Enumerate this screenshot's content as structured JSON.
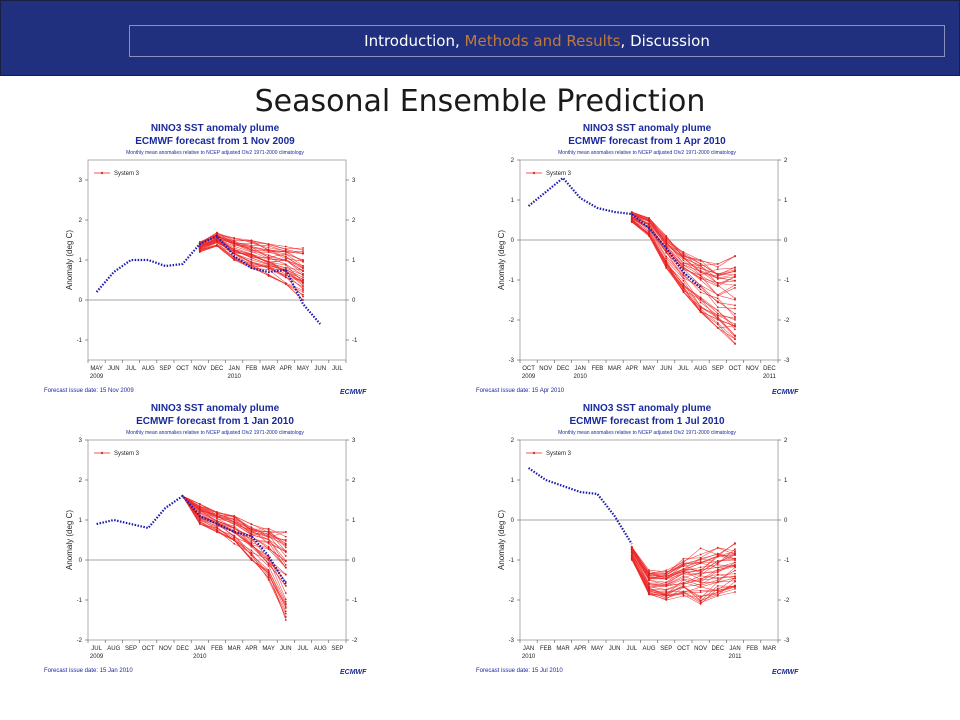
{
  "header": {
    "nav_parts": [
      "Introduction",
      ", ",
      "Methods and Results",
      ", Discussion"
    ],
    "accent_color": "#c07a3a",
    "bar_color": "#20307e"
  },
  "slide_title": "Seasonal Ensemble Prediction",
  "chart_data": [
    {
      "type": "line",
      "title": "NINO3 SST anomaly plume",
      "subtitle": "ECMWF forecast from 1 Nov 2009",
      "note": "Monthly mean anomalies relative to NCEP adjusted OIv2 1971-2000 climatology",
      "ylabel": "Anomaly (deg C)",
      "ylim": [
        -1.5,
        3.5
      ],
      "yticks": [
        -1,
        0,
        1,
        2,
        3
      ],
      "categories": [
        "MAY",
        "JUN",
        "JUL",
        "AUG",
        "SEP",
        "OCT",
        "NOV",
        "DEC",
        "JAN",
        "FEB",
        "MAR",
        "APR",
        "MAY",
        "JUN",
        "JUL"
      ],
      "year_labels": [
        {
          "label": "2009",
          "index": 0
        },
        {
          "label": "2010",
          "index": 8
        }
      ],
      "legend": "System 3",
      "footer": "Forecast issue date: 15 Nov 2009",
      "logo": "ECMWF",
      "observed": [
        0.2,
        0.7,
        1.0,
        1.0,
        0.85,
        0.9,
        1.4,
        1.6,
        1.1,
        0.8,
        0.7,
        0.75,
        -0.1,
        -0.6
      ],
      "forecast_start": 6,
      "forecast_end": 12,
      "ensemble_range": [
        [
          1.2,
          1.45
        ],
        [
          1.35,
          1.7
        ],
        [
          1.0,
          1.55
        ],
        [
          0.8,
          1.5
        ],
        [
          0.6,
          1.4
        ],
        [
          0.4,
          1.35
        ],
        [
          0.0,
          1.3
        ]
      ]
    },
    {
      "type": "line",
      "title": "NINO3 SST anomaly plume",
      "subtitle": "ECMWF forecast from 1 Apr 2010",
      "note": "Monthly mean anomalies relative to NCEP adjusted OIv2 1971-2000 climatology",
      "ylabel": "Anomaly (deg C)",
      "ylim": [
        -3,
        2
      ],
      "yticks": [
        -3,
        -2,
        -1,
        0,
        1,
        2
      ],
      "categories": [
        "OCT",
        "NOV",
        "DEC",
        "JAN",
        "FEB",
        "MAR",
        "APR",
        "MAY",
        "JUN",
        "JUL",
        "AUG",
        "SEP",
        "OCT",
        "NOV",
        "DEC"
      ],
      "year_labels": [
        {
          "label": "2009",
          "index": 0
        },
        {
          "label": "2010",
          "index": 3
        },
        {
          "label": "2011",
          "index": 14
        }
      ],
      "legend": "System 3",
      "footer": "Forecast issue date: 15 Apr 2010",
      "logo": "ECMWF",
      "observed": [
        0.85,
        1.2,
        1.55,
        1.05,
        0.8,
        0.7,
        0.65,
        0.3,
        -0.2,
        -0.8,
        -1.2
      ],
      "forecast_start": 6,
      "forecast_end": 12,
      "ensemble_range": [
        [
          0.45,
          0.7
        ],
        [
          0.1,
          0.55
        ],
        [
          -0.7,
          0.1
        ],
        [
          -1.3,
          -0.3
        ],
        [
          -1.8,
          -0.5
        ],
        [
          -2.2,
          -0.6
        ],
        [
          -2.6,
          -0.4
        ]
      ]
    },
    {
      "type": "line",
      "title": "NINO3 SST anomaly plume",
      "subtitle": "ECMWF forecast from 1 Jan 2010",
      "note": "Monthly mean anomalies relative to NCEP adjusted OIv2 1971-2000 climatology",
      "ylabel": "Anomaly (deg C)",
      "ylim": [
        -2,
        3
      ],
      "yticks": [
        -2,
        -1,
        0,
        1,
        2,
        3
      ],
      "categories": [
        "JUL",
        "AUG",
        "SEP",
        "OCT",
        "NOV",
        "DEC",
        "JAN",
        "FEB",
        "MAR",
        "APR",
        "MAY",
        "JUN",
        "JUL",
        "AUG",
        "SEP"
      ],
      "year_labels": [
        {
          "label": "2009",
          "index": 0
        },
        {
          "label": "2010",
          "index": 6
        }
      ],
      "legend": "System 3",
      "footer": "Forecast issue date: 15 Jan 2010",
      "logo": "ECMWF",
      "observed": [
        0.9,
        1.0,
        0.9,
        0.8,
        1.3,
        1.6,
        1.1,
        0.9,
        0.7,
        0.6,
        0.1,
        -0.6
      ],
      "forecast_start": 5,
      "forecast_end": 11,
      "ensemble_range": [
        [
          1.6,
          1.6
        ],
        [
          0.9,
          1.4
        ],
        [
          0.7,
          1.2
        ],
        [
          0.4,
          1.1
        ],
        [
          0.0,
          0.9
        ],
        [
          -0.5,
          0.8
        ],
        [
          -1.5,
          0.7
        ]
      ]
    },
    {
      "type": "line",
      "title": "NINO3 SST anomaly plume",
      "subtitle": "ECMWF forecast from 1 Jul 2010",
      "note": "Monthly mean anomalies relative to NCEP adjusted OIv2 1971-2000 climatology",
      "ylabel": "Anomaly (deg C)",
      "ylim": [
        -3,
        2
      ],
      "yticks": [
        -3,
        -2,
        -1,
        0,
        1,
        2
      ],
      "categories": [
        "JAN",
        "FEB",
        "MAR",
        "APR",
        "MAY",
        "JUN",
        "JUL",
        "AUG",
        "SEP",
        "OCT",
        "NOV",
        "DEC",
        "JAN",
        "FEB",
        "MAR"
      ],
      "year_labels": [
        {
          "label": "2010",
          "index": 0
        },
        {
          "label": "2011",
          "index": 12
        }
      ],
      "legend": "System 3",
      "footer": "Forecast issue date: 15 Jul 2010",
      "logo": "ECMWF",
      "observed": [
        1.3,
        1.0,
        0.85,
        0.7,
        0.65,
        0.1,
        -0.6
      ],
      "forecast_start": 6,
      "forecast_end": 12,
      "ensemble_range": [
        [
          -1.0,
          -0.6
        ],
        [
          -1.9,
          -1.2
        ],
        [
          -2.0,
          -1.2
        ],
        [
          -1.9,
          -0.9
        ],
        [
          -2.1,
          -0.7
        ],
        [
          -1.9,
          -0.6
        ],
        [
          -1.8,
          -0.5
        ]
      ]
    }
  ]
}
